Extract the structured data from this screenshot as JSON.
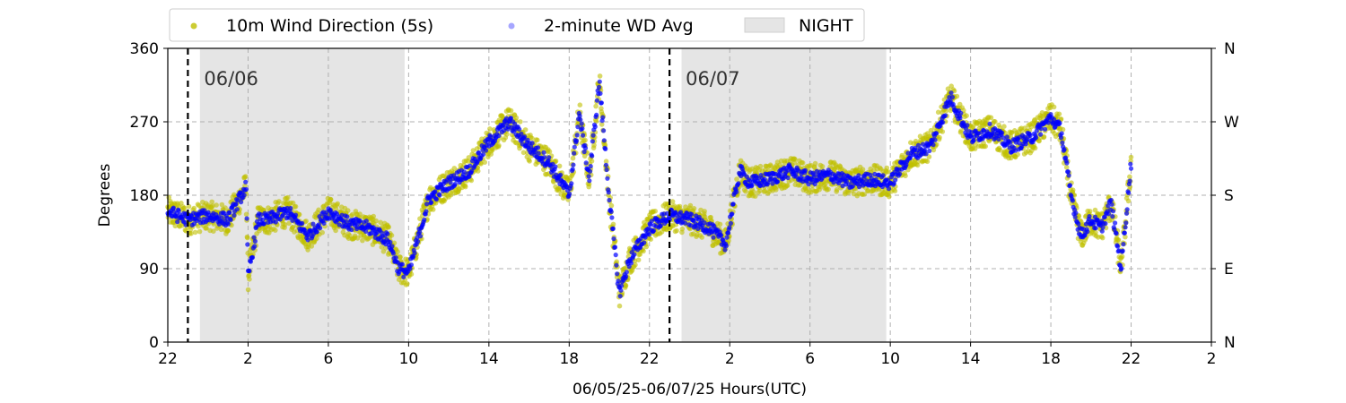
{
  "chart_data": {
    "type": "scatter",
    "xlabel": "06/05/25-06/07/25  Hours(UTC)",
    "ylabel": "Degrees",
    "x_range_hours": [
      22,
      74
    ],
    "ylim": [
      0,
      360
    ],
    "x_ticks": [
      {
        "h": 22,
        "label": "22"
      },
      {
        "h": 26,
        "label": "2"
      },
      {
        "h": 30,
        "label": "6"
      },
      {
        "h": 34,
        "label": "10"
      },
      {
        "h": 38,
        "label": "14"
      },
      {
        "h": 42,
        "label": "18"
      },
      {
        "h": 46,
        "label": "22"
      },
      {
        "h": 50,
        "label": "2"
      },
      {
        "h": 54,
        "label": "6"
      },
      {
        "h": 58,
        "label": "10"
      },
      {
        "h": 62,
        "label": "14"
      },
      {
        "h": 66,
        "label": "18"
      },
      {
        "h": 70,
        "label": "22"
      },
      {
        "h": 74,
        "label": "2"
      }
    ],
    "y_ticks": [
      0,
      90,
      180,
      270,
      360
    ],
    "right_ticks": [
      {
        "v": 0,
        "label": "N"
      },
      {
        "v": 90,
        "label": "E"
      },
      {
        "v": 180,
        "label": "S"
      },
      {
        "v": 270,
        "label": "W"
      },
      {
        "v": 360,
        "label": "N"
      }
    ],
    "grid": true,
    "legend_position": "top",
    "legend": [
      {
        "label": "10m Wind Direction (5s)",
        "kind": "dot",
        "color": "#bfbf00"
      },
      {
        "label": "2-minute WD Avg",
        "kind": "dot",
        "color": "#0000ff"
      },
      {
        "label": "NIGHT",
        "kind": "patch",
        "color": "#e5e5e5"
      }
    ],
    "night_bands_hours": [
      [
        23.6,
        33.8
      ],
      [
        47.6,
        57.8
      ]
    ],
    "day_markers": [
      {
        "h": 23.0,
        "label": "06/06"
      },
      {
        "h": 47.0,
        "label": "06/07"
      }
    ],
    "series": [
      {
        "name": "10m Wind Direction (5s)",
        "color": "#bfbf00",
        "spread": 18,
        "hours": [
          22,
          23,
          24,
          25,
          25.9,
          26,
          26.5,
          27,
          28,
          29,
          30,
          31,
          32,
          33,
          33.5,
          34,
          35,
          36,
          37,
          38,
          39,
          40,
          41,
          42,
          42.5,
          43,
          43.5,
          44,
          44.5,
          45,
          46,
          47,
          48,
          49,
          49.8,
          50.5,
          51,
          52,
          53,
          54,
          55,
          56,
          57,
          58,
          59,
          60,
          61,
          62,
          63,
          64,
          65,
          66,
          66.5,
          67,
          67.5,
          68,
          68.5,
          69,
          69.5,
          70
        ],
        "values": [
          160,
          150,
          155,
          150,
          190,
          80,
          150,
          150,
          160,
          130,
          160,
          145,
          140,
          125,
          90,
          85,
          175,
          195,
          210,
          245,
          270,
          240,
          220,
          180,
          280,
          200,
          320,
          175,
          60,
          100,
          140,
          155,
          150,
          140,
          120,
          210,
          195,
          200,
          210,
          200,
          205,
          195,
          200,
          195,
          230,
          240,
          300,
          250,
          260,
          240,
          250,
          275,
          260,
          180,
          130,
          150,
          140,
          170,
          90,
          220
        ]
      },
      {
        "name": "2-minute WD Avg",
        "color": "#0000ff",
        "spread": 8,
        "hours": [
          22,
          23,
          24,
          25,
          25.9,
          26,
          26.5,
          27,
          28,
          29,
          30,
          31,
          32,
          33,
          33.5,
          34,
          35,
          36,
          37,
          38,
          39,
          40,
          41,
          42,
          42.5,
          43,
          43.5,
          44,
          44.5,
          45,
          46,
          47,
          48,
          49,
          49.8,
          50.5,
          51,
          52,
          53,
          54,
          55,
          56,
          57,
          58,
          59,
          60,
          61,
          62,
          63,
          64,
          65,
          66,
          66.5,
          67,
          67.5,
          68,
          68.5,
          69,
          69.5,
          70
        ],
        "values": [
          160,
          150,
          155,
          150,
          190,
          80,
          150,
          150,
          160,
          130,
          160,
          145,
          140,
          125,
          90,
          85,
          175,
          195,
          210,
          245,
          270,
          240,
          220,
          180,
          280,
          200,
          320,
          175,
          60,
          100,
          140,
          155,
          150,
          140,
          120,
          210,
          195,
          200,
          210,
          200,
          205,
          195,
          200,
          195,
          230,
          240,
          300,
          250,
          260,
          240,
          250,
          275,
          260,
          180,
          130,
          150,
          140,
          170,
          90,
          220
        ]
      }
    ]
  }
}
